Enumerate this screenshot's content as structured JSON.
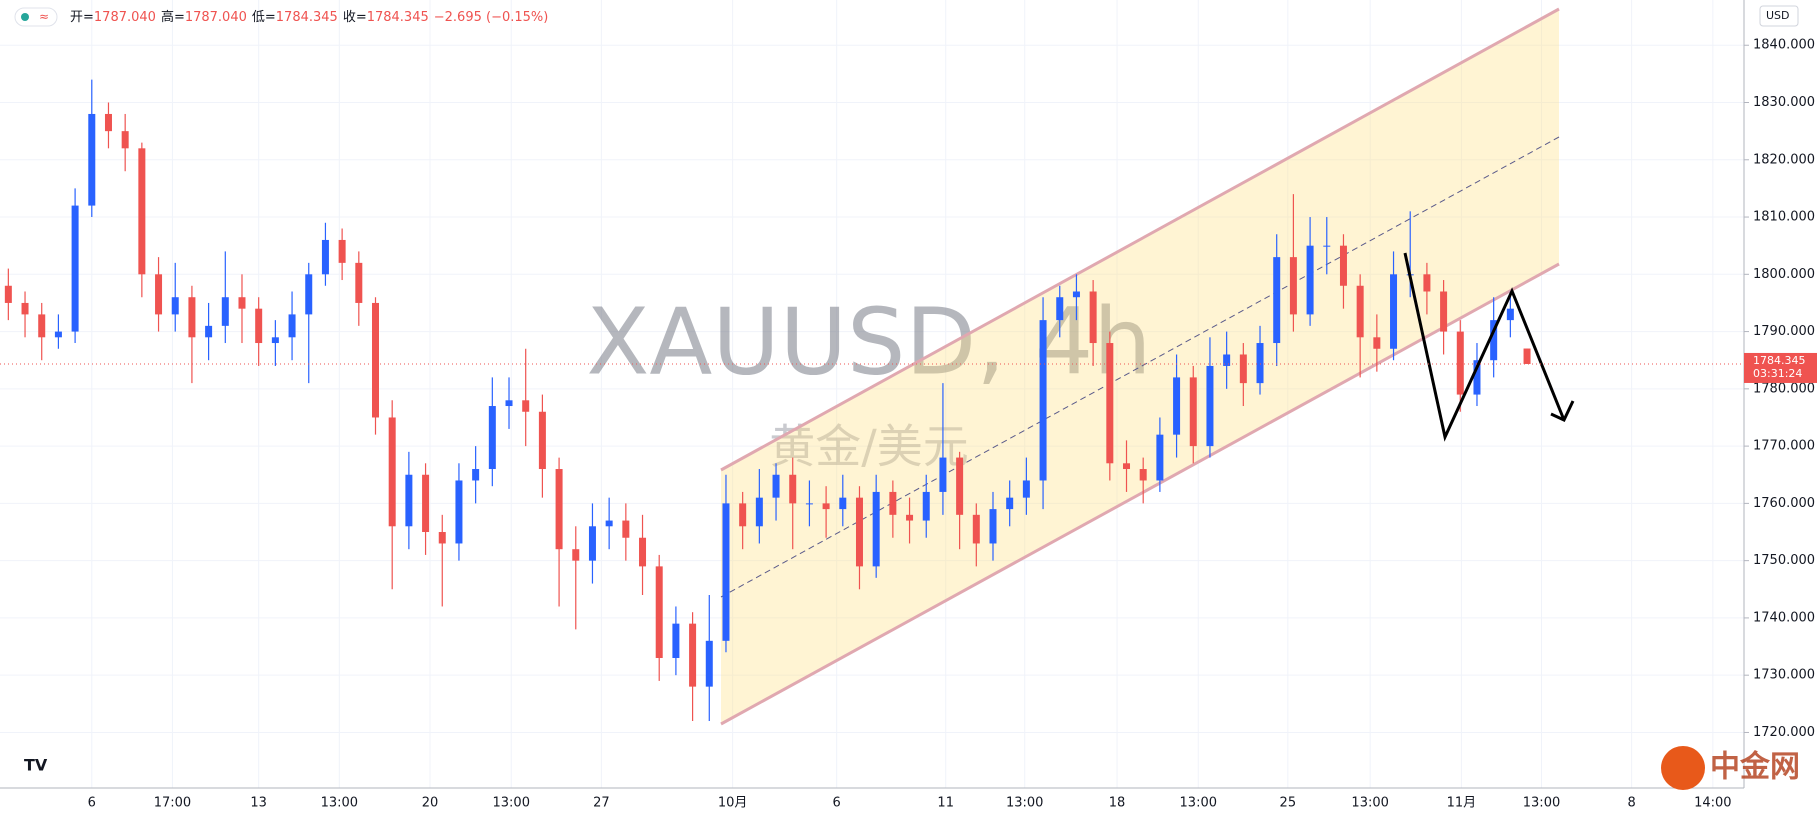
{
  "chart_data": {
    "type": "candlestick",
    "header": {
      "ohlc": [
        {
          "label": "开=",
          "value": "1787.040"
        },
        {
          "label": "高=",
          "value": "1787.040"
        },
        {
          "label": "低=",
          "value": "1784.345"
        },
        {
          "label": "收=",
          "value": "1784.345"
        }
      ],
      "change": "−2.695 (−0.15%)"
    },
    "watermark": "XAUUSD, 4h",
    "watermark_sub": "黄金/美元",
    "currency": "USD",
    "last_price": {
      "value": 1784.345,
      "label": "1784.345",
      "countdown": "03:31:24"
    },
    "logo": "中金网",
    "up_color": "#2962ff",
    "down_color": "#ef5350",
    "grid": true,
    "ylim": [
      1710.3,
      1847.9
    ],
    "yticks": [
      {
        "value": 1720,
        "label": "1720.000"
      },
      {
        "value": 1730,
        "label": "1730.000"
      },
      {
        "value": 1740,
        "label": "1740.000"
      },
      {
        "value": 1750,
        "label": "1750.000"
      },
      {
        "value": 1760,
        "label": "1760.000"
      },
      {
        "value": 1770,
        "label": "1770.000"
      },
      {
        "value": 1780,
        "label": "1780.000"
      },
      {
        "value": 1790,
        "label": "1790.000"
      },
      {
        "value": 1800,
        "label": "1800.000"
      },
      {
        "value": 1810,
        "label": "1810.000"
      },
      {
        "value": 1820,
        "label": "1820.000"
      },
      {
        "value": 1830,
        "label": "1830.000"
      },
      {
        "value": 1840,
        "label": "1840.000"
      }
    ],
    "xlim": [
      0,
      313.5
    ],
    "xticks": [
      {
        "value": 16.5,
        "label": "6"
      },
      {
        "value": 31,
        "label": "17:00"
      },
      {
        "value": 46.5,
        "label": "13"
      },
      {
        "value": 61,
        "label": "13:00"
      },
      {
        "value": 77.3,
        "label": "20"
      },
      {
        "value": 91.9,
        "label": "13:00"
      },
      {
        "value": 108.1,
        "label": "27"
      },
      {
        "value": 131.7,
        "label": "10月"
      },
      {
        "value": 150.4,
        "label": "6"
      },
      {
        "value": 170,
        "label": "11"
      },
      {
        "value": 184.2,
        "label": "13:00"
      },
      {
        "value": 200.8,
        "label": "18"
      },
      {
        "value": 215.4,
        "label": "13:00"
      },
      {
        "value": 231.5,
        "label": "25"
      },
      {
        "value": 246.3,
        "label": "13:00"
      },
      {
        "value": 262.7,
        "label": "11月"
      },
      {
        "value": 277.1,
        "label": "13:00"
      },
      {
        "value": 293.3,
        "label": "8"
      },
      {
        "value": 307.9,
        "label": "14:00"
      }
    ],
    "x": [
      1.5,
      4.5,
      7.5,
      10.5,
      13.5,
      16.5,
      19.5,
      22.5,
      25.5,
      28.5,
      31.5,
      34.5,
      37.5,
      40.5,
      43.5,
      46.5,
      49.5,
      52.5,
      55.5,
      58.5,
      61.5,
      64.5,
      67.5,
      70.5,
      73.5,
      76.5,
      79.5,
      82.5,
      85.5,
      88.5,
      91.5,
      94.5,
      97.5,
      100.5,
      103.5,
      106.5,
      109.5,
      112.5,
      115.5,
      118.5,
      121.5,
      124.5,
      127.5,
      130.5,
      133.5,
      136.5,
      139.5,
      142.5,
      145.5,
      148.5,
      151.5,
      154.5,
      157.5,
      160.5,
      163.5,
      166.5,
      169.5,
      172.5,
      175.5,
      178.5,
      181.5,
      184.5,
      187.5,
      190.5,
      193.5,
      196.5,
      199.5,
      202.5,
      205.5,
      208.5,
      211.5,
      214.5,
      217.5,
      220.5,
      223.5,
      226.5,
      229.5,
      232.5,
      235.5,
      238.5,
      241.5,
      244.5,
      247.5,
      250.5,
      253.5,
      256.5,
      259.5,
      262.5,
      265.5,
      268.5,
      271.5,
      274.5
    ],
    "open": [
      1798,
      1795,
      1793,
      1789,
      1790,
      1812,
      1828,
      1825,
      1822,
      1800,
      1793,
      1796,
      1789,
      1791,
      1796,
      1794,
      1788,
      1789,
      1793,
      1800,
      1806,
      1802,
      1795,
      1775,
      1756,
      1765,
      1755,
      1753,
      1764,
      1766,
      1777,
      1778,
      1776,
      1766,
      1752,
      1750,
      1756,
      1757,
      1754,
      1749,
      1733,
      1739,
      1728,
      1736,
      1760,
      1756,
      1761,
      1765,
      1760,
      1760,
      1759,
      1761,
      1749,
      1762,
      1758,
      1757,
      1762,
      1768,
      1758,
      1753,
      1759,
      1761,
      1764,
      1792,
      1796,
      1797,
      1788,
      1767,
      1766,
      1764,
      1772,
      1782,
      1770,
      1784,
      1786,
      1781,
      1788,
      1803,
      1793,
      1805,
      1805,
      1798,
      1789,
      1787,
      1800,
      1800,
      1797,
      1790,
      1779,
      1785,
      1792,
      1787.04
    ],
    "high": [
      1801,
      1797,
      1795,
      1793,
      1815,
      1834,
      1830,
      1828,
      1823,
      1803,
      1802,
      1798,
      1795,
      1804,
      1800,
      1796,
      1792,
      1797,
      1802,
      1809,
      1808,
      1804,
      1796,
      1778,
      1769,
      1767,
      1758,
      1767,
      1770,
      1782,
      1782,
      1787,
      1779,
      1768,
      1756,
      1760,
      1761,
      1760,
      1758,
      1751,
      1742,
      1741,
      1744,
      1765,
      1762,
      1766,
      1767,
      1768,
      1764,
      1763,
      1765,
      1763,
      1765,
      1764,
      1761,
      1765,
      1781,
      1769,
      1760,
      1762,
      1764,
      1768,
      1796,
      1798,
      1800,
      1799,
      1790,
      1771,
      1768,
      1775,
      1786,
      1784,
      1789,
      1790,
      1788,
      1791,
      1807,
      1814,
      1810,
      1810,
      1807,
      1800,
      1793,
      1804,
      1811,
      1802,
      1799,
      1792,
      1788,
      1796,
      1797,
      1787.04
    ],
    "low": [
      1792,
      1789,
      1785,
      1787,
      1788,
      1810,
      1822,
      1818,
      1796,
      1790,
      1790,
      1781,
      1785,
      1788,
      1788,
      1784,
      1784,
      1785,
      1781,
      1798,
      1799,
      1791,
      1772,
      1745,
      1752,
      1751,
      1742,
      1750,
      1760,
      1763,
      1773,
      1770,
      1761,
      1742,
      1738,
      1746,
      1752,
      1750,
      1744,
      1729,
      1730,
      1722,
      1722,
      1734,
      1752,
      1753,
      1757,
      1752,
      1756,
      1754,
      1756,
      1745,
      1747,
      1754,
      1753,
      1754,
      1758,
      1752,
      1749,
      1750,
      1756,
      1758,
      1759,
      1789,
      1792,
      1784,
      1764,
      1762,
      1760,
      1762,
      1768,
      1767,
      1768,
      1780,
      1777,
      1779,
      1784,
      1790,
      1791,
      1800,
      1794,
      1782,
      1783,
      1785,
      1796,
      1793,
      1786,
      1776,
      1777,
      1782,
      1789,
      1784.345
    ],
    "close": [
      1795,
      1793,
      1789,
      1790,
      1812,
      1828,
      1825,
      1822,
      1800,
      1793,
      1796,
      1789,
      1791,
      1796,
      1794,
      1788,
      1789,
      1793,
      1800,
      1806,
      1802,
      1795,
      1775,
      1756,
      1765,
      1755,
      1753,
      1764,
      1766,
      1777,
      1778,
      1776,
      1766,
      1752,
      1750,
      1756,
      1757,
      1754,
      1749,
      1733,
      1739,
      1728,
      1736,
      1760,
      1756,
      1761,
      1765,
      1760,
      1760,
      1759,
      1761,
      1749,
      1762,
      1758,
      1757,
      1762,
      1768,
      1758,
      1753,
      1759,
      1761,
      1764,
      1792,
      1796,
      1797,
      1788,
      1767,
      1766,
      1764,
      1772,
      1782,
      1770,
      1784,
      1786,
      1781,
      1788,
      1803,
      1793,
      1805,
      1805,
      1798,
      1789,
      1787,
      1800,
      1800,
      1797,
      1790,
      1779,
      1785,
      1792,
      1794,
      1784.345
    ]
  }
}
